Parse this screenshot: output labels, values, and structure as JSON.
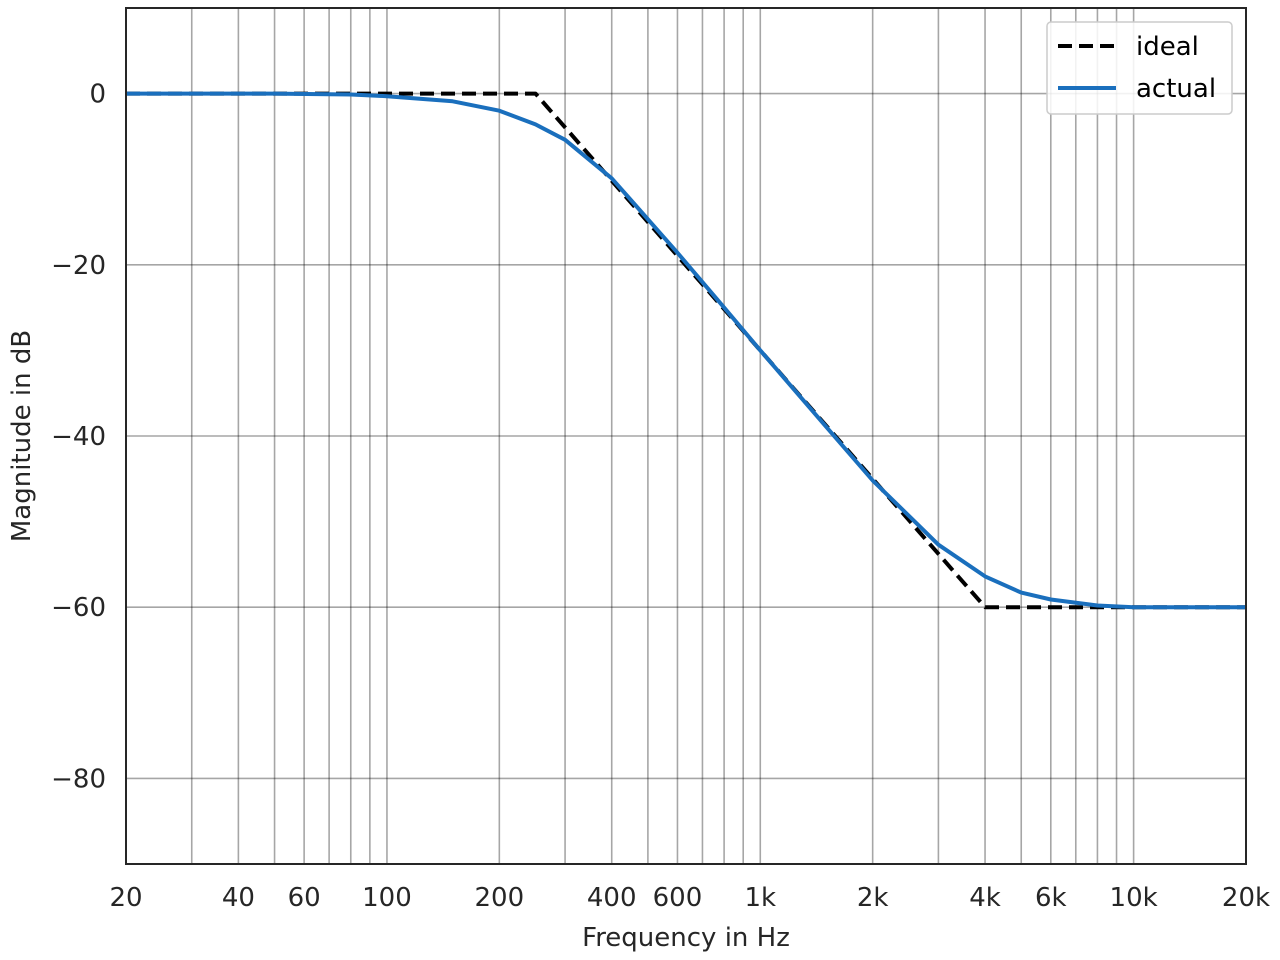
{
  "chart_data": {
    "type": "line",
    "xlabel": "Frequency in Hz",
    "ylabel": "Magnitude in dB",
    "xscale": "log",
    "xlim": [
      20,
      20000
    ],
    "ylim": [
      -90,
      10
    ],
    "grid": true,
    "legend_position": "top-right",
    "x_ticks": [
      {
        "value": 20,
        "label": "20"
      },
      {
        "value": 40,
        "label": "40"
      },
      {
        "value": 60,
        "label": "60"
      },
      {
        "value": 100,
        "label": "100"
      },
      {
        "value": 200,
        "label": "200"
      },
      {
        "value": 400,
        "label": "400"
      },
      {
        "value": 600,
        "label": "600"
      },
      {
        "value": 1000,
        "label": "1k"
      },
      {
        "value": 2000,
        "label": "2k"
      },
      {
        "value": 4000,
        "label": "4k"
      },
      {
        "value": 6000,
        "label": "6k"
      },
      {
        "value": 10000,
        "label": "10k"
      },
      {
        "value": 20000,
        "label": "20k"
      }
    ],
    "x_gridlines": [
      30,
      40,
      50,
      60,
      70,
      80,
      90,
      100,
      200,
      300,
      400,
      500,
      600,
      700,
      800,
      900,
      1000,
      2000,
      3000,
      4000,
      5000,
      6000,
      7000,
      8000,
      9000,
      10000
    ],
    "y_ticks": [
      {
        "value": 0,
        "label": "0"
      },
      {
        "value": -20,
        "label": "−20"
      },
      {
        "value": -40,
        "label": "−40"
      },
      {
        "value": -60,
        "label": "−60"
      },
      {
        "value": -80,
        "label": "−80"
      }
    ],
    "series": [
      {
        "name": "ideal",
        "color": "#000000",
        "style": "dashed",
        "x": [
          20,
          250,
          4000,
          20000
        ],
        "y": [
          0,
          0,
          -60,
          -60
        ]
      },
      {
        "name": "actual",
        "color": "#1a6fbd",
        "style": "solid",
        "x": [
          20,
          50,
          80,
          100,
          150,
          200,
          250,
          300,
          400,
          600,
          800,
          1000,
          1500,
          2000,
          3000,
          4000,
          5000,
          6000,
          8000,
          10000,
          20000
        ],
        "y": [
          0,
          0,
          -0.1,
          -0.3,
          -0.9,
          -2.0,
          -3.6,
          -5.4,
          -9.9,
          -18.6,
          -25.0,
          -30.0,
          -38.9,
          -45.2,
          -52.7,
          -56.4,
          -58.3,
          -59.1,
          -59.8,
          -60.0,
          -60.0
        ]
      }
    ]
  }
}
